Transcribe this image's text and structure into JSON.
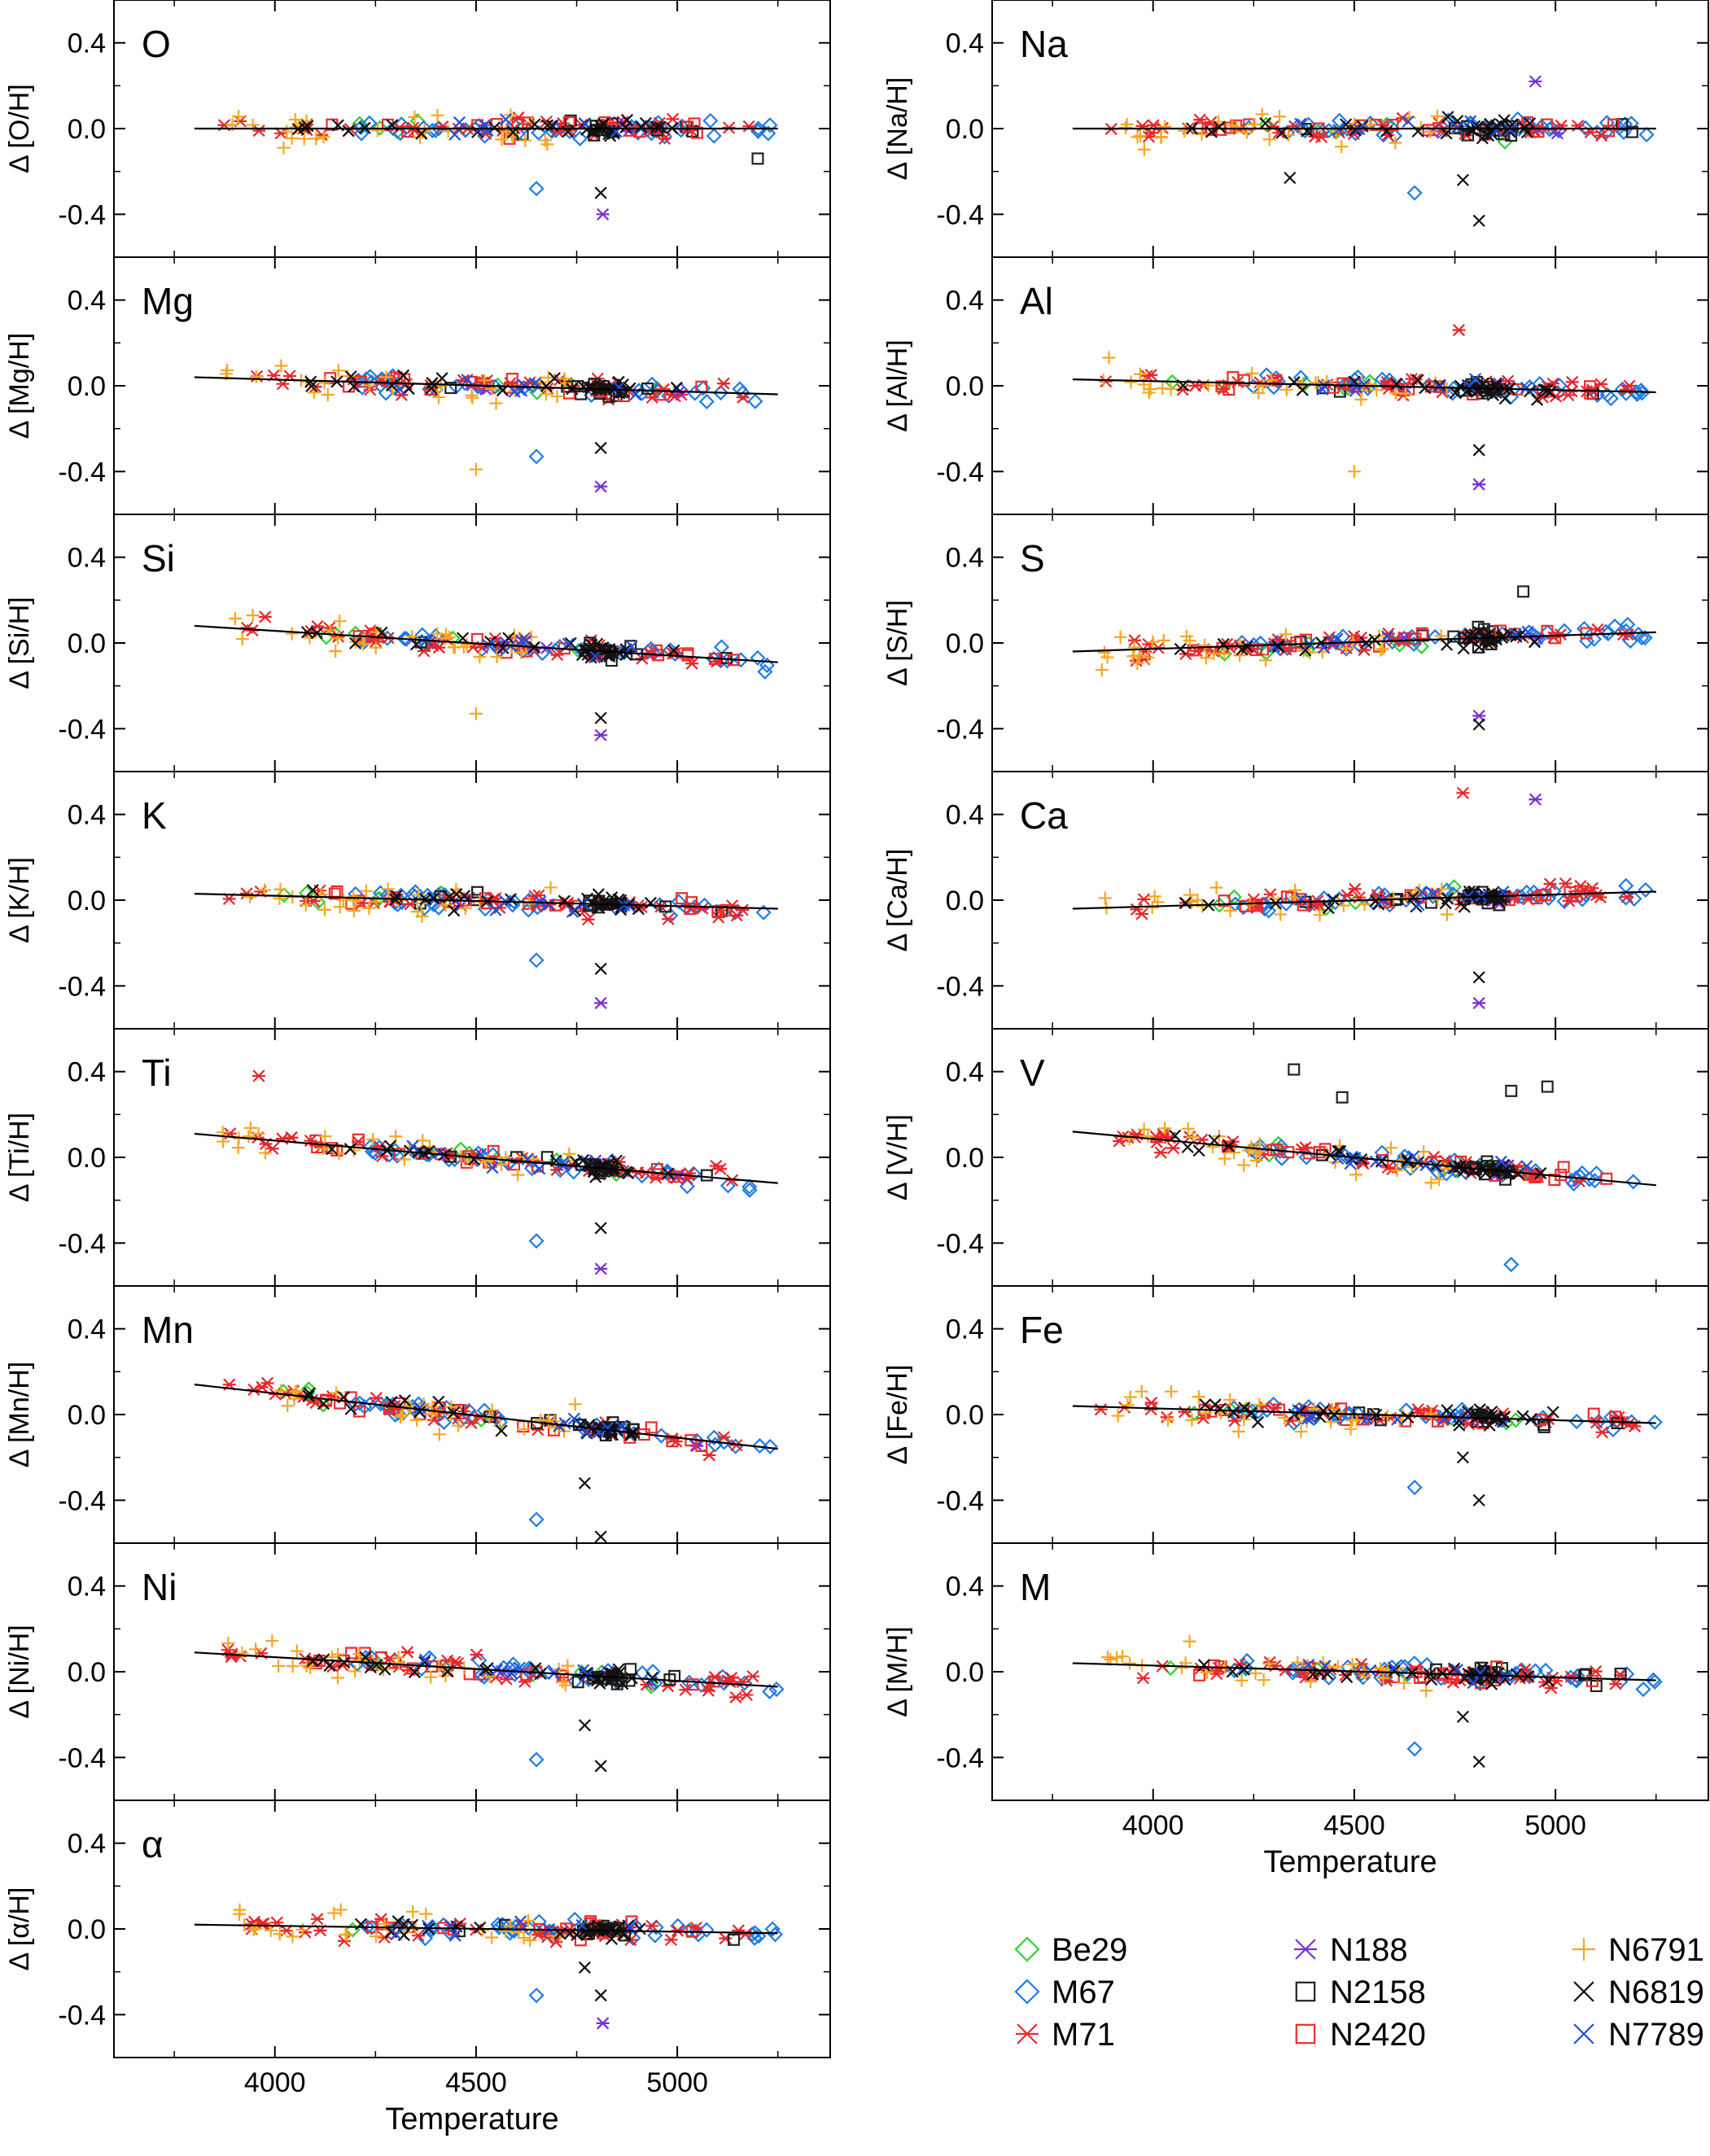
{
  "figure": {
    "x_axis_label": "Temperature",
    "y_range": [
      -0.6,
      0.6
    ],
    "x_range": [
      3600,
      5380
    ],
    "x_ticks": [
      4000,
      4500,
      5000
    ],
    "y_ticks": [
      0.4,
      0.0,
      -0.4
    ],
    "y_tick_labels": [
      "0.4",
      "0.0",
      "-0.4"
    ]
  },
  "legend": {
    "entries": [
      {
        "name": "Be29",
        "marker": "diamond",
        "color": "#2fd12f"
      },
      {
        "name": "M67",
        "marker": "diamond",
        "color": "#1e7be6"
      },
      {
        "name": "M71",
        "marker": "asterisk",
        "color": "#e8262b"
      },
      {
        "name": "N188",
        "marker": "asterisk",
        "color": "#7a2fd6"
      },
      {
        "name": "N2158",
        "marker": "square",
        "color": "#222222"
      },
      {
        "name": "N2420",
        "marker": "square",
        "color": "#ee2c2c"
      },
      {
        "name": "N6791",
        "marker": "plus",
        "color": "#f5a623"
      },
      {
        "name": "N6819",
        "marker": "cross",
        "color": "#111111"
      },
      {
        "name": "N7789",
        "marker": "cross",
        "color": "#1f4fe0"
      }
    ]
  },
  "chart_data": [
    {
      "type": "scatter",
      "element": "O",
      "ylabel": "Δ [O/H]",
      "fit": [
        [
          3800,
          0.0
        ],
        [
          5250,
          0.0
        ]
      ],
      "outliers": [
        {
          "x": 4650,
          "y": -0.28,
          "cluster": "M67"
        },
        {
          "x": 4810,
          "y": -0.3,
          "cluster": "N6819"
        },
        {
          "x": 4815,
          "y": -0.4,
          "cluster": "N188"
        },
        {
          "x": 5200,
          "y": -0.14,
          "cluster": "N2158"
        }
      ]
    },
    {
      "type": "scatter",
      "element": "Na",
      "ylabel": "Δ [Na/H]",
      "fit": [
        [
          3800,
          0.0
        ],
        [
          5250,
          0.0
        ]
      ],
      "outliers": [
        {
          "x": 4650,
          "y": -0.3,
          "cluster": "M67"
        },
        {
          "x": 4810,
          "y": -0.43,
          "cluster": "N6819"
        },
        {
          "x": 4770,
          "y": -0.24,
          "cluster": "N6819"
        },
        {
          "x": 4340,
          "y": -0.23,
          "cluster": "N6819"
        },
        {
          "x": 4950,
          "y": 0.22,
          "cluster": "N188"
        }
      ]
    },
    {
      "type": "scatter",
      "element": "Mg",
      "ylabel": "Δ [Mg/H]",
      "fit": [
        [
          3800,
          0.04
        ],
        [
          5250,
          -0.04
        ]
      ],
      "outliers": [
        {
          "x": 4500,
          "y": -0.39,
          "cluster": "N6791"
        },
        {
          "x": 4810,
          "y": -0.47,
          "cluster": "N188"
        },
        {
          "x": 4650,
          "y": -0.33,
          "cluster": "M67"
        },
        {
          "x": 4810,
          "y": -0.29,
          "cluster": "N6819"
        }
      ]
    },
    {
      "type": "scatter",
      "element": "Al",
      "ylabel": "Δ [Al/H]",
      "fit": [
        [
          3800,
          0.03
        ],
        [
          5250,
          -0.03
        ]
      ],
      "outliers": [
        {
          "x": 4500,
          "y": -0.4,
          "cluster": "N6791"
        },
        {
          "x": 4810,
          "y": -0.46,
          "cluster": "N188"
        },
        {
          "x": 4810,
          "y": -0.3,
          "cluster": "N6819"
        },
        {
          "x": 4760,
          "y": 0.26,
          "cluster": "M71"
        }
      ]
    },
    {
      "type": "scatter",
      "element": "Si",
      "ylabel": "Δ [Si/H]",
      "fit": [
        [
          3800,
          0.08
        ],
        [
          5250,
          -0.09
        ]
      ],
      "outliers": [
        {
          "x": 4810,
          "y": -0.43,
          "cluster": "N188"
        },
        {
          "x": 4810,
          "y": -0.35,
          "cluster": "N6819"
        },
        {
          "x": 4500,
          "y": -0.33,
          "cluster": "N6791"
        }
      ]
    },
    {
      "type": "scatter",
      "element": "S",
      "ylabel": "Δ [S/H]",
      "fit": [
        [
          3800,
          -0.04
        ],
        [
          5250,
          0.05
        ]
      ],
      "outliers": [
        {
          "x": 4810,
          "y": -0.34,
          "cluster": "N188"
        },
        {
          "x": 4810,
          "y": -0.38,
          "cluster": "N6819"
        },
        {
          "x": 4920,
          "y": 0.24,
          "cluster": "N2158"
        }
      ]
    },
    {
      "type": "scatter",
      "element": "K",
      "ylabel": "Δ [K/H]",
      "fit": [
        [
          3800,
          0.03
        ],
        [
          5250,
          -0.04
        ]
      ],
      "outliers": [
        {
          "x": 4810,
          "y": -0.48,
          "cluster": "N188"
        },
        {
          "x": 4810,
          "y": -0.32,
          "cluster": "N6819"
        },
        {
          "x": 4650,
          "y": -0.28,
          "cluster": "M67"
        }
      ]
    },
    {
      "type": "scatter",
      "element": "Ca",
      "ylabel": "Δ [Ca/H]",
      "fit": [
        [
          3800,
          -0.04
        ],
        [
          5250,
          0.04
        ]
      ],
      "outliers": [
        {
          "x": 4770,
          "y": 0.5,
          "cluster": "M71"
        },
        {
          "x": 4950,
          "y": 0.47,
          "cluster": "N188"
        },
        {
          "x": 4810,
          "y": -0.48,
          "cluster": "N188"
        },
        {
          "x": 4810,
          "y": -0.36,
          "cluster": "N6819"
        }
      ]
    },
    {
      "type": "scatter",
      "element": "Ti",
      "ylabel": "Δ [Ti/H]",
      "fit": [
        [
          3800,
          0.11
        ],
        [
          5250,
          -0.12
        ]
      ],
      "outliers": [
        {
          "x": 3960,
          "y": 0.38,
          "cluster": "M71"
        },
        {
          "x": 4810,
          "y": -0.52,
          "cluster": "N188"
        },
        {
          "x": 4650,
          "y": -0.39,
          "cluster": "M67"
        },
        {
          "x": 4810,
          "y": -0.33,
          "cluster": "N6819"
        }
      ]
    },
    {
      "type": "scatter",
      "element": "V",
      "ylabel": "Δ [V/H]",
      "fit": [
        [
          3800,
          0.12
        ],
        [
          5250,
          -0.13
        ]
      ],
      "outliers": [
        {
          "x": 4350,
          "y": 0.41,
          "cluster": "N2158"
        },
        {
          "x": 4470,
          "y": 0.28,
          "cluster": "N2158"
        },
        {
          "x": 4890,
          "y": 0.31,
          "cluster": "N2158"
        },
        {
          "x": 4980,
          "y": 0.33,
          "cluster": "N2158"
        },
        {
          "x": 4890,
          "y": -0.5,
          "cluster": "M67"
        }
      ]
    },
    {
      "type": "scatter",
      "element": "Mn",
      "ylabel": "Δ [Mn/H]",
      "fit": [
        [
          3800,
          0.14
        ],
        [
          5250,
          -0.16
        ]
      ],
      "outliers": [
        {
          "x": 4650,
          "y": -0.49,
          "cluster": "M67"
        },
        {
          "x": 4810,
          "y": -0.57,
          "cluster": "N6819"
        },
        {
          "x": 4770,
          "y": -0.32,
          "cluster": "N6819"
        }
      ]
    },
    {
      "type": "scatter",
      "element": "Fe",
      "ylabel": "Δ [Fe/H]",
      "fit": [
        [
          3800,
          0.04
        ],
        [
          5250,
          -0.04
        ]
      ],
      "outliers": [
        {
          "x": 4650,
          "y": -0.34,
          "cluster": "M67"
        },
        {
          "x": 4810,
          "y": -0.4,
          "cluster": "N6819"
        },
        {
          "x": 4770,
          "y": -0.2,
          "cluster": "N6819"
        }
      ]
    },
    {
      "type": "scatter",
      "element": "Ni",
      "ylabel": "Δ [Ni/H]",
      "fit": [
        [
          3800,
          0.09
        ],
        [
          5250,
          -0.07
        ]
      ],
      "outliers": [
        {
          "x": 4650,
          "y": -0.41,
          "cluster": "M67"
        },
        {
          "x": 4810,
          "y": -0.44,
          "cluster": "N6819"
        },
        {
          "x": 4770,
          "y": -0.25,
          "cluster": "N6819"
        }
      ]
    },
    {
      "type": "scatter",
      "element": "M",
      "ylabel": "Δ [M/H]",
      "fit": [
        [
          3800,
          0.04
        ],
        [
          5250,
          -0.04
        ]
      ],
      "outliers": [
        {
          "x": 4650,
          "y": -0.36,
          "cluster": "M67"
        },
        {
          "x": 4810,
          "y": -0.42,
          "cluster": "N6819"
        },
        {
          "x": 4770,
          "y": -0.21,
          "cluster": "N6819"
        }
      ]
    },
    {
      "type": "scatter",
      "element": "α",
      "ylabel": "Δ [α/H]",
      "fit": [
        [
          3800,
          0.02
        ],
        [
          5250,
          -0.02
        ]
      ],
      "outliers": [
        {
          "x": 4650,
          "y": -0.31,
          "cluster": "M67"
        },
        {
          "x": 4815,
          "y": -0.44,
          "cluster": "N188"
        },
        {
          "x": 4810,
          "y": -0.31,
          "cluster": "N6819"
        },
        {
          "x": 4770,
          "y": -0.18,
          "cluster": "N6819"
        }
      ]
    }
  ]
}
